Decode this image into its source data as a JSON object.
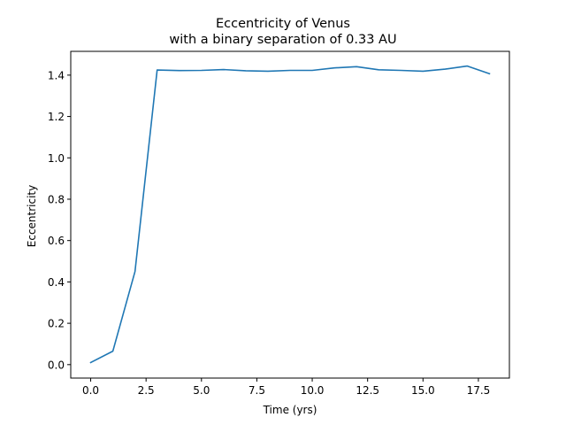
{
  "chart_data": {
    "type": "line",
    "title_lines": [
      "Eccentricity of Venus",
      "with a binary separation of 0.33 AU"
    ],
    "xlabel": "Time (yrs)",
    "ylabel": "Eccentricity",
    "xlim": [
      -0.9,
      18.9
    ],
    "ylim": [
      -0.065,
      1.515
    ],
    "x_ticks": [
      0.0,
      2.5,
      5.0,
      7.5,
      10.0,
      12.5,
      15.0,
      17.5
    ],
    "x_tick_labels": [
      "0.0",
      "2.5",
      "5.0",
      "7.5",
      "10.0",
      "12.5",
      "15.0",
      "17.5"
    ],
    "y_ticks": [
      0.0,
      0.2,
      0.4,
      0.6,
      0.8,
      1.0,
      1.2,
      1.4
    ],
    "y_tick_labels": [
      "0.0",
      "0.2",
      "0.4",
      "0.6",
      "0.8",
      "1.0",
      "1.2",
      "1.4"
    ],
    "grid": false,
    "series": [
      {
        "color": "#1f77b4",
        "x": [
          0,
          1,
          2,
          3,
          4,
          5,
          6,
          7,
          8,
          9,
          10,
          11,
          12,
          13,
          14,
          15,
          16,
          17,
          18
        ],
        "y": [
          0.01,
          0.065,
          0.45,
          1.425,
          1.422,
          1.423,
          1.427,
          1.421,
          1.419,
          1.423,
          1.423,
          1.435,
          1.441,
          1.426,
          1.423,
          1.419,
          1.429,
          1.444,
          1.407
        ]
      }
    ]
  }
}
